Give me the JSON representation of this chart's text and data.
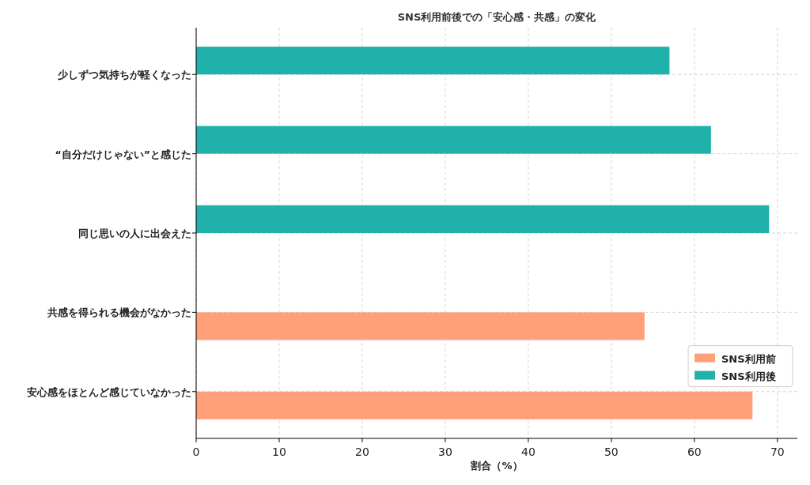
{
  "chart_data": {
    "type": "bar",
    "orientation": "horizontal",
    "title": "SNS利用前後での「安心感・共感」の変化",
    "xlabel": "割合（%）",
    "categories": [
      "少しずつ気持ちが軽くなった",
      "“自分だけじゃない”と感じた",
      "同じ思いの人に出会えた",
      "共感を得られる機会がなかった",
      "安心感をほとんど感じていなかった"
    ],
    "series": [
      {
        "name": "SNS利用前",
        "color": "#ffa07a",
        "values": [
          null,
          null,
          null,
          54,
          67
        ]
      },
      {
        "name": "SNS利用後",
        "color": "#20b2aa",
        "values": [
          57,
          62,
          69,
          null,
          null
        ]
      }
    ],
    "xlim": [
      0,
      72.4
    ],
    "xticks": [
      0,
      10,
      20,
      30,
      40,
      50,
      60,
      70
    ],
    "grid": true,
    "legend": "bottom right"
  }
}
